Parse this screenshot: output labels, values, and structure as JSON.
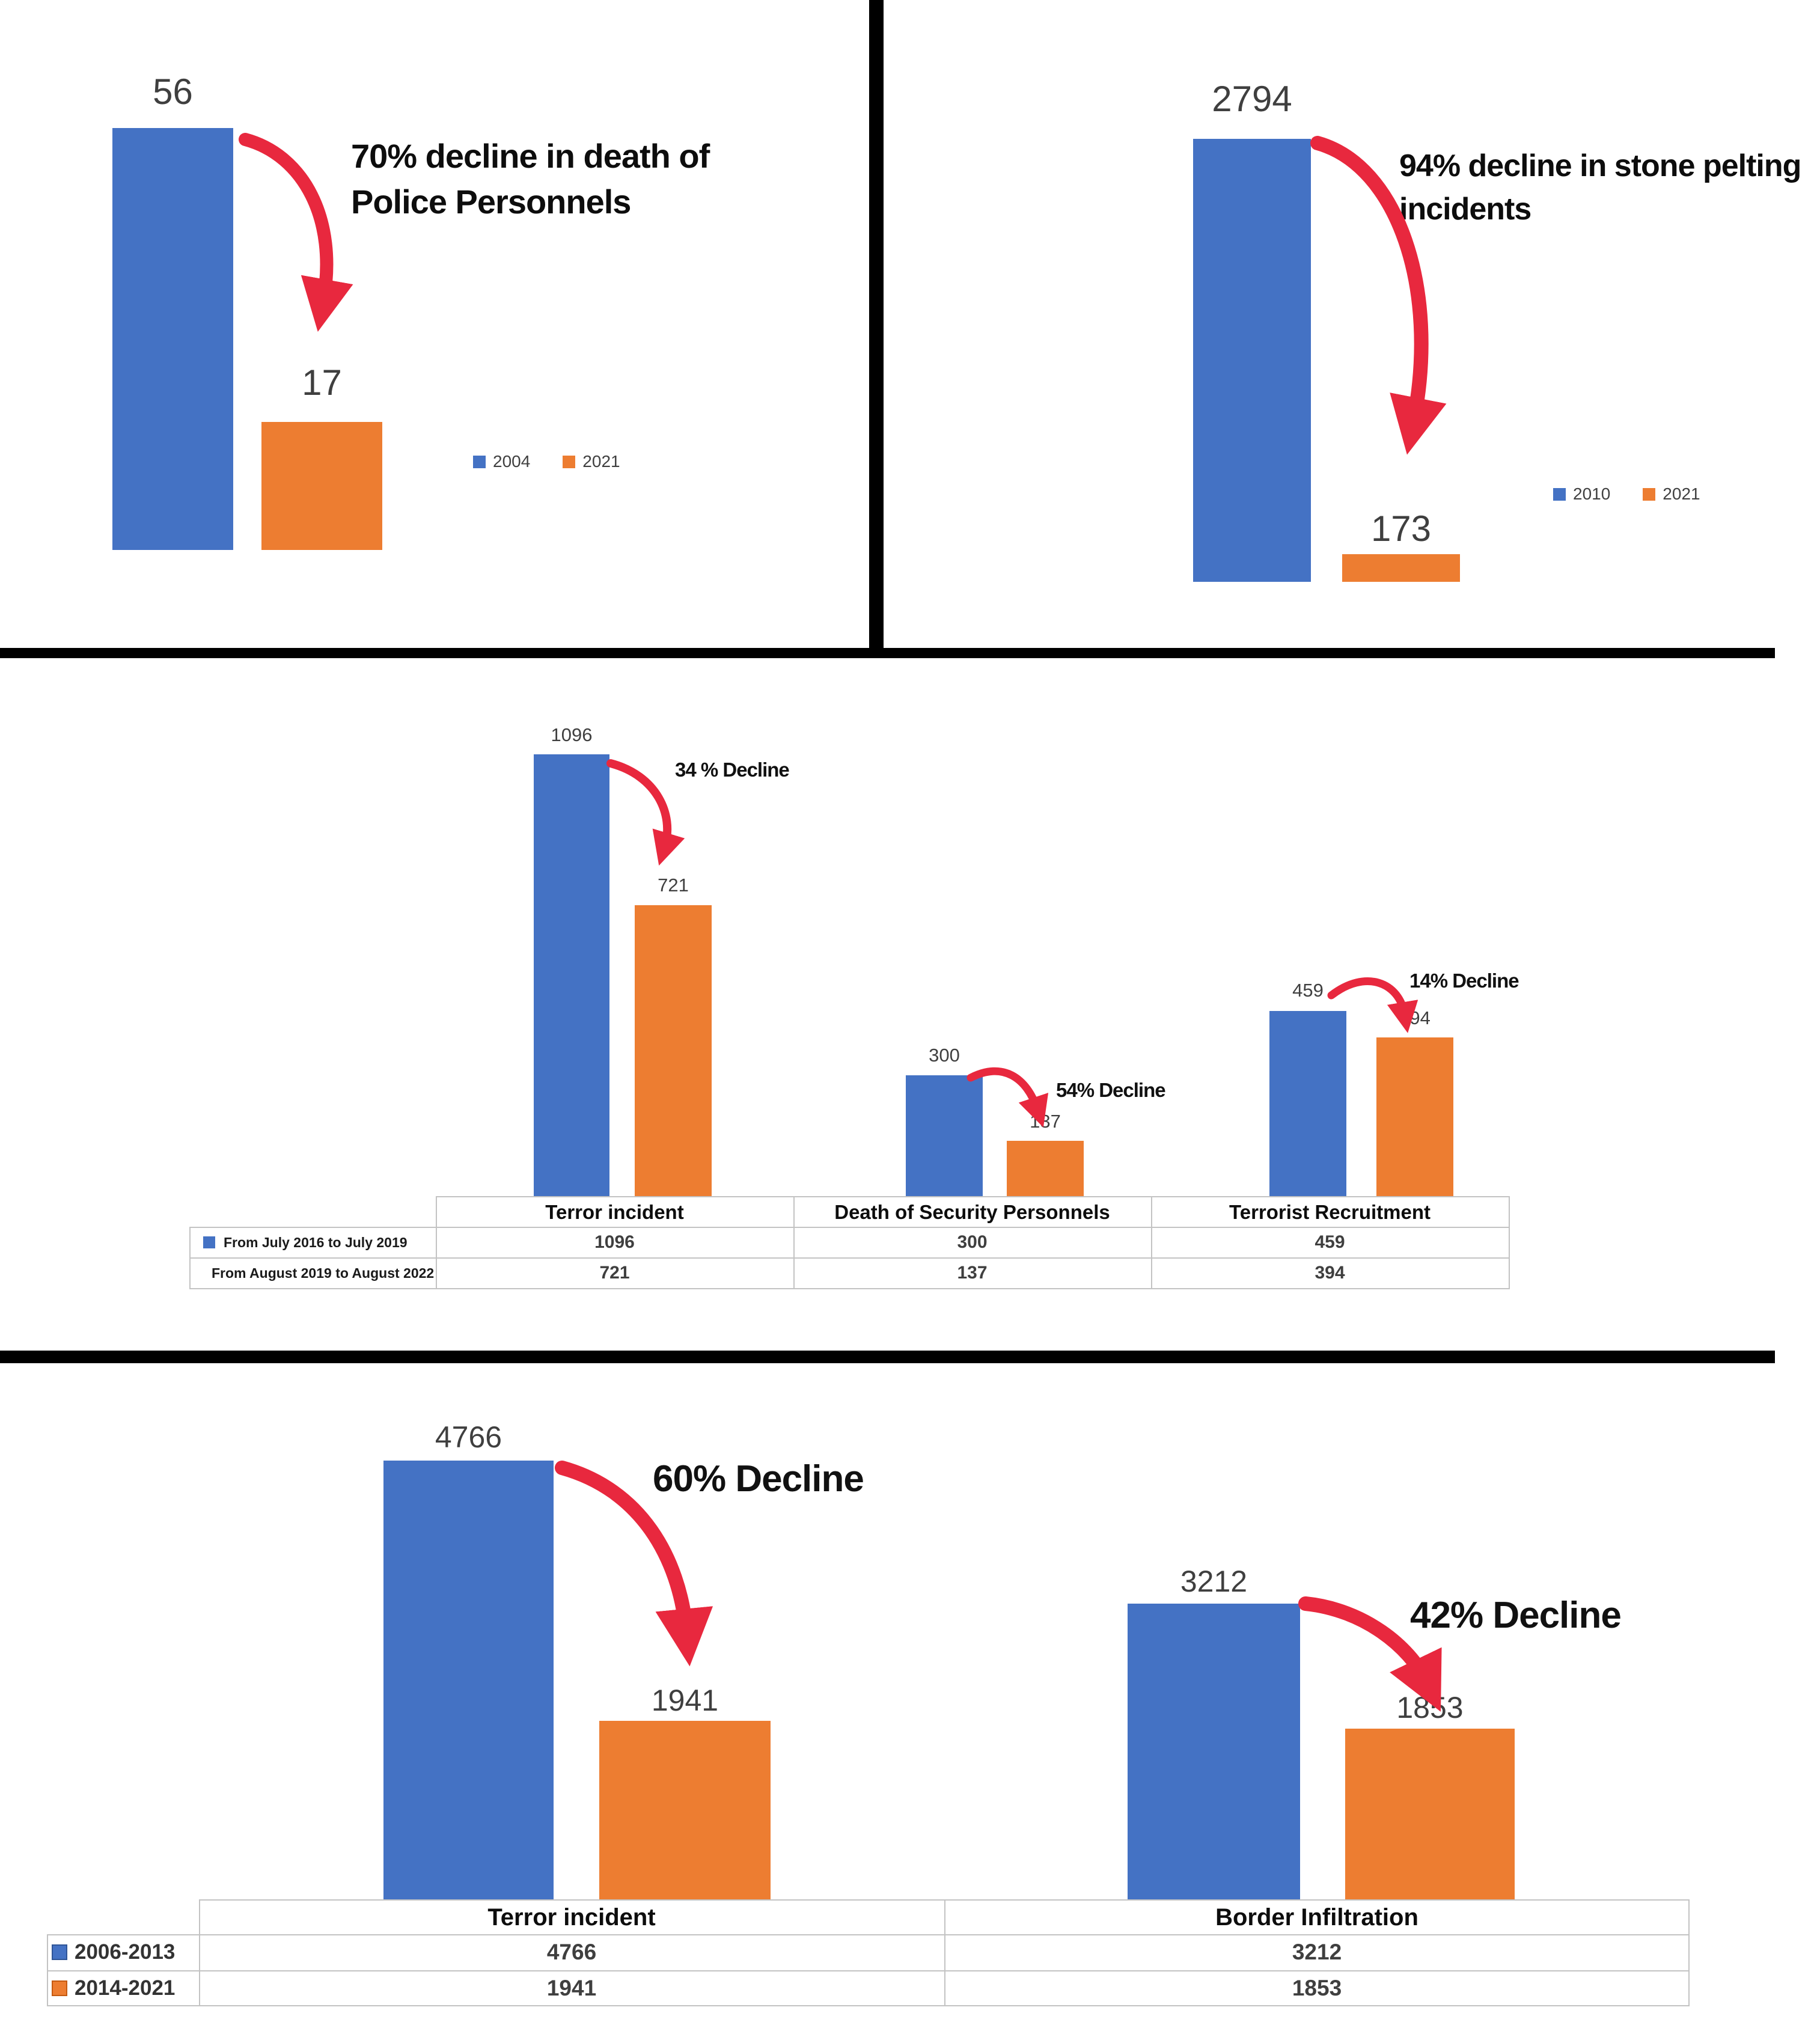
{
  "colors": {
    "series_blue": "#4472C4",
    "series_orange": "#ED7D31",
    "arrow_red": "#E8283E",
    "divider_black": "#000000"
  },
  "chart_data": [
    {
      "type": "bar",
      "position": "top-left",
      "title": "70% decline in death of Police Personnels",
      "categories": [
        "2004",
        "2021"
      ],
      "values": [
        56,
        17
      ],
      "legend": [
        "2004",
        "2021"
      ],
      "legend_position": "right",
      "bar_colors": [
        "#4472C4",
        "#ED7D31"
      ],
      "ylim": [
        0,
        56
      ],
      "grid": false
    },
    {
      "type": "bar",
      "position": "top-right",
      "title": "94% decline in stone pelting incidents",
      "categories": [
        "2010",
        "2021"
      ],
      "values": [
        2794,
        173
      ],
      "legend": [
        "2010",
        "2021"
      ],
      "legend_position": "right",
      "bar_colors": [
        "#4472C4",
        "#ED7D31"
      ],
      "ylim": [
        0,
        2794
      ],
      "grid": false
    },
    {
      "type": "bar",
      "position": "middle",
      "categories": [
        "Terror incident",
        "Death of Security Personnels",
        "Terrorist Recruitment"
      ],
      "series": [
        {
          "name": "From July 2016 to July 2019",
          "color": "#4472C4",
          "values": [
            1096,
            300,
            459
          ]
        },
        {
          "name": "From August 2019 to August 2022",
          "color": "#ED7D31",
          "values": [
            721,
            137,
            394
          ]
        }
      ],
      "annotations": [
        "34 % Decline",
        "54% Decline",
        "14% Decline"
      ],
      "data_table": true,
      "grid": false
    },
    {
      "type": "bar",
      "position": "bottom",
      "categories": [
        "Terror incident",
        "Border Infiltration"
      ],
      "series": [
        {
          "name": "2006-2013",
          "color": "#4472C4",
          "values": [
            4766,
            3212
          ]
        },
        {
          "name": "2014-2021",
          "color": "#ED7D31",
          "values": [
            1941,
            1853
          ]
        }
      ],
      "annotations": [
        "60% Decline",
        "42% Decline"
      ],
      "data_table": true,
      "grid": false
    }
  ]
}
